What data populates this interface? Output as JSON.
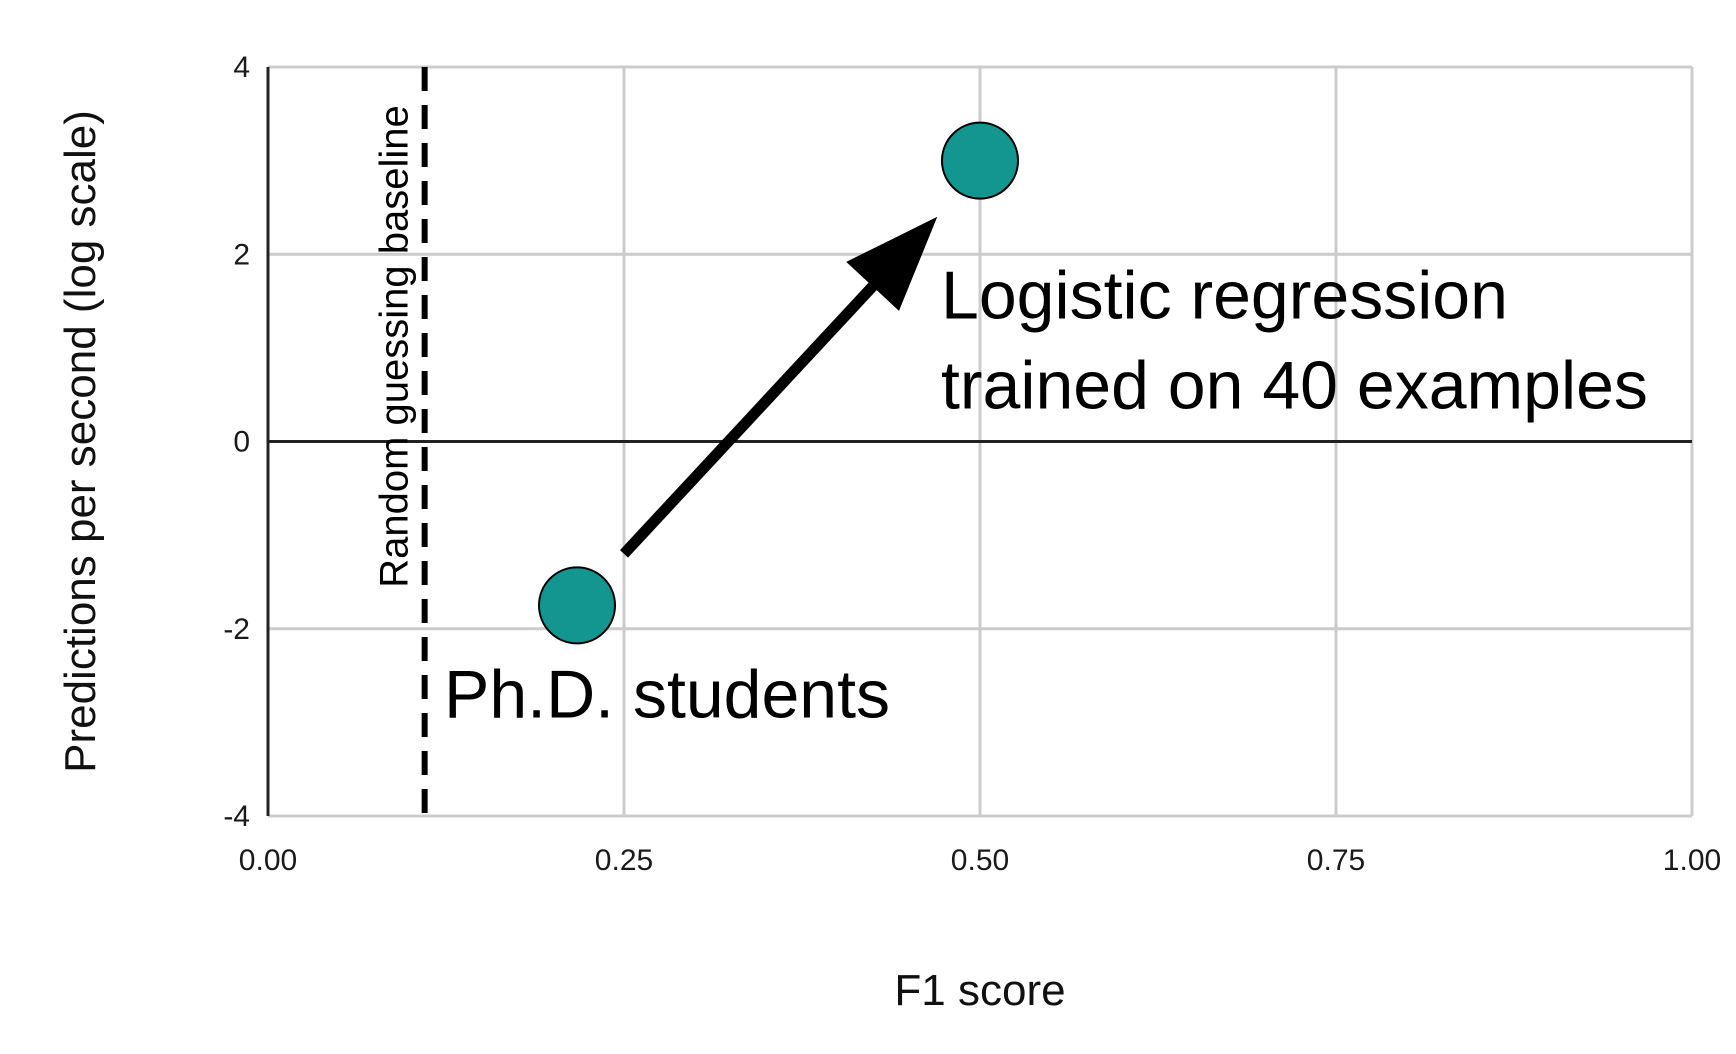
{
  "chart_data": {
    "type": "scatter",
    "title": "",
    "xlabel": "F1 score",
    "ylabel": "Predictions per second (log scale)",
    "xlim": [
      0,
      1
    ],
    "ylim": [
      -4,
      4
    ],
    "x_ticks": [
      "0.00",
      "0.25",
      "0.50",
      "0.75",
      "1.00"
    ],
    "y_ticks": [
      "4",
      "2",
      "0",
      "-2",
      "-4"
    ],
    "grid": true,
    "points": [
      {
        "x": 0.217,
        "y": -1.75,
        "label": "Ph.D. students"
      },
      {
        "x": 0.5,
        "y": 3.0,
        "label_lines": [
          "Logistic regression",
          "trained on 40 examples"
        ]
      }
    ],
    "baseline": {
      "x": 0.11,
      "label": "Random guessing baseline",
      "style": "dashed"
    },
    "arrow": {
      "from": [
        0.25,
        -1.2
      ],
      "to": [
        0.47,
        2.4
      ]
    },
    "colors": {
      "point": "#139690",
      "grid": "#cccccc",
      "axis": "#222222"
    }
  }
}
